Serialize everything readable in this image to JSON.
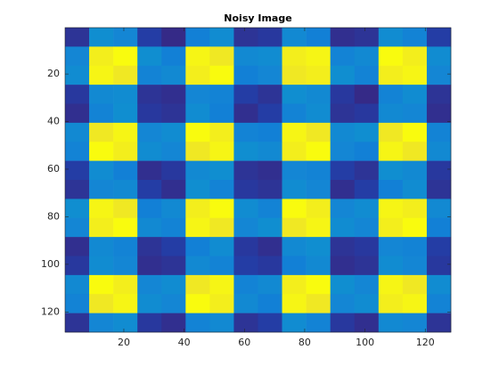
{
  "chart_data": {
    "type": "heatmap",
    "title": "Noisy Image",
    "colormap": "parula",
    "x": [
      4.5,
      12.5,
      20.5,
      28.5,
      36.5,
      44.5,
      52.5,
      60.5,
      68.5,
      76.5,
      84.5,
      92.5,
      100.5,
      108.5,
      116.5,
      124.5
    ],
    "y": [
      4.5,
      12.5,
      20.5,
      28.5,
      36.5,
      44.5,
      52.5,
      60.5,
      68.5,
      76.5,
      84.5,
      92.5,
      100.5,
      108.5,
      116.5,
      124.5
    ],
    "z": [
      [
        0.2,
        0.45,
        0.42,
        0.22,
        0.18,
        0.4,
        0.44,
        0.2,
        0.21,
        0.43,
        0.4,
        0.19,
        0.2,
        0.44,
        0.41,
        0.22
      ],
      [
        0.42,
        0.95,
        0.97,
        0.45,
        0.4,
        0.96,
        0.94,
        0.43,
        0.44,
        0.95,
        0.96,
        0.41,
        0.43,
        0.97,
        0.95,
        0.44
      ],
      [
        0.44,
        0.96,
        0.94,
        0.41,
        0.43,
        0.95,
        0.97,
        0.4,
        0.42,
        0.94,
        0.95,
        0.45,
        0.41,
        0.95,
        0.96,
        0.42
      ],
      [
        0.21,
        0.43,
        0.44,
        0.2,
        0.19,
        0.42,
        0.41,
        0.22,
        0.2,
        0.45,
        0.43,
        0.21,
        0.18,
        0.41,
        0.44,
        0.2
      ],
      [
        0.19,
        0.41,
        0.45,
        0.21,
        0.2,
        0.44,
        0.4,
        0.19,
        0.22,
        0.41,
        0.44,
        0.2,
        0.21,
        0.43,
        0.42,
        0.19
      ],
      [
        0.43,
        0.94,
        0.96,
        0.42,
        0.44,
        0.97,
        0.95,
        0.41,
        0.4,
        0.96,
        0.94,
        0.43,
        0.45,
        0.94,
        0.97,
        0.41
      ],
      [
        0.41,
        0.97,
        0.95,
        0.44,
        0.42,
        0.94,
        0.96,
        0.45,
        0.43,
        0.95,
        0.97,
        0.42,
        0.4,
        0.96,
        0.94,
        0.43
      ],
      [
        0.22,
        0.44,
        0.4,
        0.19,
        0.21,
        0.43,
        0.45,
        0.2,
        0.19,
        0.42,
        0.41,
        0.22,
        0.2,
        0.45,
        0.43,
        0.21
      ],
      [
        0.2,
        0.42,
        0.43,
        0.22,
        0.19,
        0.45,
        0.41,
        0.21,
        0.2,
        0.44,
        0.42,
        0.19,
        0.22,
        0.4,
        0.44,
        0.2
      ],
      [
        0.45,
        0.96,
        0.94,
        0.4,
        0.43,
        0.95,
        0.97,
        0.44,
        0.41,
        0.97,
        0.95,
        0.42,
        0.44,
        0.96,
        0.95,
        0.43
      ],
      [
        0.42,
        0.95,
        0.97,
        0.43,
        0.41,
        0.96,
        0.94,
        0.42,
        0.45,
        0.94,
        0.96,
        0.44,
        0.42,
        0.95,
        0.97,
        0.4
      ],
      [
        0.19,
        0.43,
        0.41,
        0.2,
        0.22,
        0.4,
        0.44,
        0.21,
        0.19,
        0.43,
        0.45,
        0.2,
        0.21,
        0.42,
        0.41,
        0.22
      ],
      [
        0.21,
        0.44,
        0.42,
        0.19,
        0.2,
        0.43,
        0.41,
        0.22,
        0.21,
        0.4,
        0.43,
        0.19,
        0.2,
        0.44,
        0.42,
        0.21
      ],
      [
        0.43,
        0.97,
        0.95,
        0.42,
        0.44,
        0.94,
        0.96,
        0.41,
        0.43,
        0.95,
        0.97,
        0.45,
        0.42,
        0.96,
        0.94,
        0.44
      ],
      [
        0.41,
        0.94,
        0.96,
        0.44,
        0.42,
        0.97,
        0.95,
        0.43,
        0.4,
        0.96,
        0.94,
        0.42,
        0.44,
        0.95,
        0.96,
        0.41
      ],
      [
        0.2,
        0.42,
        0.44,
        0.21,
        0.19,
        0.41,
        0.43,
        0.2,
        0.22,
        0.44,
        0.41,
        0.21,
        0.19,
        0.43,
        0.42,
        0.2
      ]
    ],
    "xlim": [
      0.5,
      128.5
    ],
    "ylim": [
      0.5,
      128.5
    ],
    "xticks": [
      20,
      40,
      60,
      80,
      100,
      120
    ],
    "yticks": [
      20,
      40,
      60,
      80,
      100,
      120
    ]
  }
}
